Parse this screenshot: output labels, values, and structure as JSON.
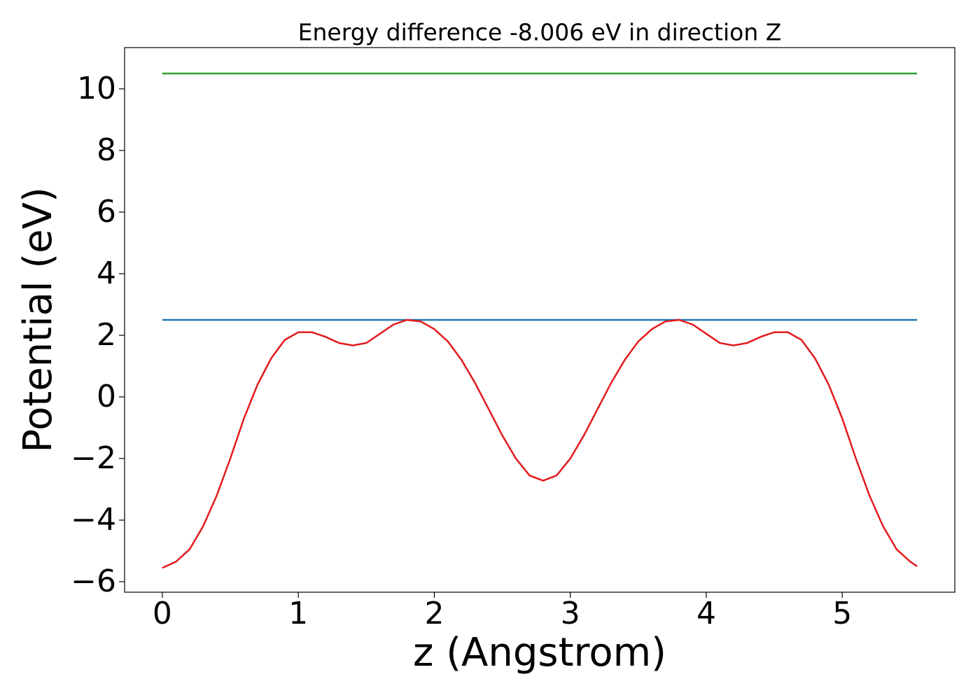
{
  "chart_data": {
    "type": "line",
    "title": "Energy difference -8.006 eV in direction Z",
    "xlabel": "z (Angstrom)",
    "ylabel": "Potential (eV)",
    "xlim": [
      -0.2775,
      5.8275
    ],
    "ylim": [
      -6.34,
      11.34
    ],
    "xticks": [
      0,
      1,
      2,
      3,
      4,
      5
    ],
    "yticks": [
      {
        "value": -6,
        "label": "−6"
      },
      {
        "value": -4,
        "label": "−4"
      },
      {
        "value": -2,
        "label": "−2"
      },
      0,
      2,
      4,
      6,
      8,
      10
    ],
    "grid": false,
    "series": [
      {
        "color": "#2ca02c",
        "x": [
          0,
          5.55
        ],
        "values": [
          10.5,
          10.5
        ]
      },
      {
        "color": "#1f77b4",
        "x": [
          0,
          5.55
        ],
        "values": [
          2.5,
          2.5
        ]
      },
      {
        "color": "#e31a1c",
        "x": [
          0.0,
          0.1,
          0.2,
          0.3,
          0.4,
          0.5,
          0.6,
          0.7,
          0.8,
          0.9,
          1.0,
          1.1,
          1.2,
          1.3,
          1.4,
          1.5,
          1.6,
          1.7,
          1.8,
          1.9,
          2.0,
          2.1,
          2.2,
          2.3,
          2.4,
          2.5,
          2.6,
          2.7,
          2.8,
          2.9,
          3.0,
          3.1,
          3.2,
          3.3,
          3.4,
          3.5,
          3.6,
          3.7,
          3.8,
          3.9,
          4.0,
          4.1,
          4.2,
          4.3,
          4.4,
          4.5,
          4.6,
          4.7,
          4.8,
          4.9,
          5.0,
          5.1,
          5.2,
          5.3,
          5.4,
          5.5,
          5.55
        ],
        "values": [
          -5.55,
          -5.35,
          -4.95,
          -4.2,
          -3.2,
          -2.0,
          -0.7,
          0.4,
          1.25,
          1.85,
          2.1,
          2.1,
          1.95,
          1.75,
          1.67,
          1.75,
          2.05,
          2.35,
          2.5,
          2.45,
          2.2,
          1.8,
          1.2,
          0.45,
          -0.4,
          -1.25,
          -2.0,
          -2.55,
          -2.72,
          -2.55,
          -2.0,
          -1.25,
          -0.4,
          0.45,
          1.2,
          1.8,
          2.2,
          2.45,
          2.5,
          2.35,
          2.05,
          1.75,
          1.67,
          1.75,
          1.95,
          2.1,
          2.1,
          1.85,
          1.25,
          0.4,
          -0.7,
          -2.0,
          -3.2,
          -4.2,
          -4.95,
          -5.35,
          -5.5
        ]
      }
    ]
  }
}
